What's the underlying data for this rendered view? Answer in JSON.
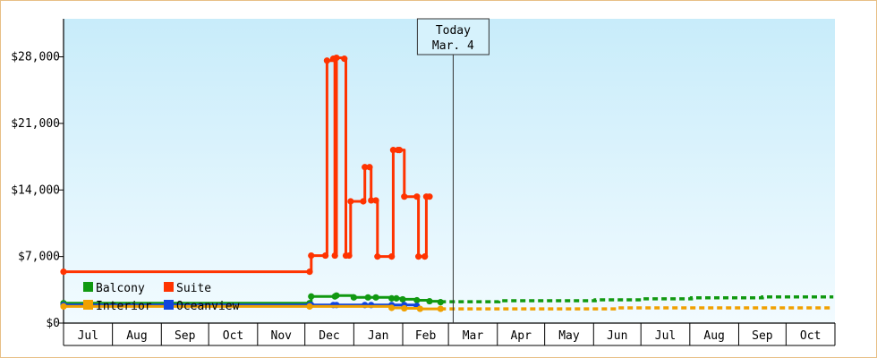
{
  "chart_data": {
    "type": "line",
    "title": "",
    "xlabel": "",
    "ylabel": "",
    "ylim": [
      0,
      32000
    ],
    "y_ticks": [
      {
        "value": 0,
        "label": "$0"
      },
      {
        "value": 7000,
        "label": "$7,000"
      },
      {
        "value": 14000,
        "label": "$14,000"
      },
      {
        "value": 21000,
        "label": "$21,000"
      },
      {
        "value": 28000,
        "label": "$28,000"
      }
    ],
    "x_axis": {
      "start": "2015-07-01",
      "end": "2016-10-31",
      "months": [
        {
          "start": "2015-07-01",
          "label": "Jul"
        },
        {
          "start": "2015-08-01",
          "label": "Aug"
        },
        {
          "start": "2015-09-01",
          "label": "Sep"
        },
        {
          "start": "2015-10-01",
          "label": "Oct"
        },
        {
          "start": "2015-11-01",
          "label": "Nov"
        },
        {
          "start": "2015-12-01",
          "label": "Dec"
        },
        {
          "start": "2016-01-01",
          "label": "Jan"
        },
        {
          "start": "2016-02-01",
          "label": "Feb"
        },
        {
          "start": "2016-03-01",
          "label": "Mar"
        },
        {
          "start": "2016-04-01",
          "label": "Apr"
        },
        {
          "start": "2016-05-01",
          "label": "May"
        },
        {
          "start": "2016-06-01",
          "label": "Jun"
        },
        {
          "start": "2016-07-01",
          "label": "Jul"
        },
        {
          "start": "2016-08-01",
          "label": "Aug"
        },
        {
          "start": "2016-09-01",
          "label": "Sep"
        },
        {
          "start": "2016-10-01",
          "label": "Oct"
        }
      ]
    },
    "today": {
      "date": "2016-03-04",
      "line1": "Today",
      "line2": "Mar. 4"
    },
    "legend": {
      "position": "bottom-left",
      "entries": [
        "Balcony",
        "Suite",
        "Interior",
        "Oceanview"
      ]
    },
    "series": [
      {
        "name": "Suite",
        "color": "#ff3300",
        "step": true,
        "points": [
          [
            "2015-07-01",
            5400
          ],
          [
            "2015-12-04",
            5400
          ],
          [
            "2015-12-05",
            7100
          ],
          [
            "2015-12-14",
            7100
          ],
          [
            "2015-12-15",
            27600
          ],
          [
            "2015-12-19",
            27800
          ],
          [
            "2015-12-20",
            7100
          ],
          [
            "2015-12-21",
            27900
          ],
          [
            "2015-12-26",
            27800
          ],
          [
            "2015-12-27",
            7100
          ],
          [
            "2015-12-29",
            7100
          ],
          [
            "2015-12-30",
            12800
          ],
          [
            "2016-01-07",
            12800
          ],
          [
            "2016-01-08",
            16400
          ],
          [
            "2016-01-11",
            16400
          ],
          [
            "2016-01-12",
            12900
          ],
          [
            "2016-01-15",
            12900
          ],
          [
            "2016-01-16",
            7000
          ],
          [
            "2016-01-25",
            7000
          ],
          [
            "2016-01-26",
            18200
          ],
          [
            "2016-01-29",
            18200
          ],
          [
            "2016-01-30",
            18200
          ],
          [
            "2016-02-02",
            13300
          ],
          [
            "2016-02-10",
            13300
          ],
          [
            "2016-02-11",
            7000
          ],
          [
            "2016-02-15",
            7000
          ],
          [
            "2016-02-16",
            13300
          ],
          [
            "2016-02-18",
            13300
          ]
        ]
      },
      {
        "name": "Balcony",
        "color": "#119911",
        "step": true,
        "points": [
          [
            "2015-07-01",
            2100
          ],
          [
            "2015-12-04",
            2100
          ],
          [
            "2015-12-05",
            2800
          ],
          [
            "2015-12-20",
            2800
          ],
          [
            "2015-12-21",
            2900
          ],
          [
            "2016-01-01",
            2700
          ],
          [
            "2016-01-10",
            2700
          ],
          [
            "2016-01-15",
            2700
          ],
          [
            "2016-01-25",
            2600
          ],
          [
            "2016-01-28",
            2600
          ],
          [
            "2016-02-01",
            2500
          ],
          [
            "2016-02-10",
            2400
          ],
          [
            "2016-02-18",
            2300
          ],
          [
            "2016-02-25",
            2200
          ]
        ]
      },
      {
        "name": "Oceanview",
        "color": "#1144dd",
        "step": true,
        "points": [
          [
            "2015-07-01",
            1900
          ],
          [
            "2015-12-04",
            1900
          ],
          [
            "2015-12-05",
            1900
          ],
          [
            "2015-12-19",
            1900
          ],
          [
            "2015-12-21",
            1900
          ],
          [
            "2016-01-08",
            1900
          ],
          [
            "2016-01-12",
            1900
          ],
          [
            "2016-01-25",
            1900
          ],
          [
            "2016-02-02",
            1900
          ],
          [
            "2016-02-10",
            1800
          ]
        ]
      },
      {
        "name": "Interior",
        "color": "#f0a000",
        "step": true,
        "points": [
          [
            "2015-07-01",
            1750
          ],
          [
            "2015-12-04",
            1750
          ],
          [
            "2016-01-25",
            1600
          ],
          [
            "2016-02-02",
            1550
          ],
          [
            "2016-02-12",
            1500
          ],
          [
            "2016-02-25",
            1500
          ]
        ]
      }
    ],
    "projections": [
      {
        "name": "Balcony",
        "color": "#119911",
        "points": [
          [
            "2016-02-25",
            2250
          ],
          [
            "2016-04-01",
            2250
          ],
          [
            "2016-04-02",
            2350
          ],
          [
            "2016-06-01",
            2350
          ],
          [
            "2016-06-02",
            2450
          ],
          [
            "2016-07-01",
            2450
          ],
          [
            "2016-07-02",
            2550
          ],
          [
            "2016-08-01",
            2550
          ],
          [
            "2016-08-02",
            2650
          ],
          [
            "2016-09-15",
            2650
          ],
          [
            "2016-09-16",
            2750
          ],
          [
            "2016-10-31",
            2750
          ]
        ]
      },
      {
        "name": "Interior",
        "color": "#f0a000",
        "points": [
          [
            "2016-02-25",
            1500
          ],
          [
            "2016-06-15",
            1500
          ],
          [
            "2016-06-16",
            1600
          ],
          [
            "2016-10-31",
            1600
          ]
        ]
      }
    ]
  }
}
